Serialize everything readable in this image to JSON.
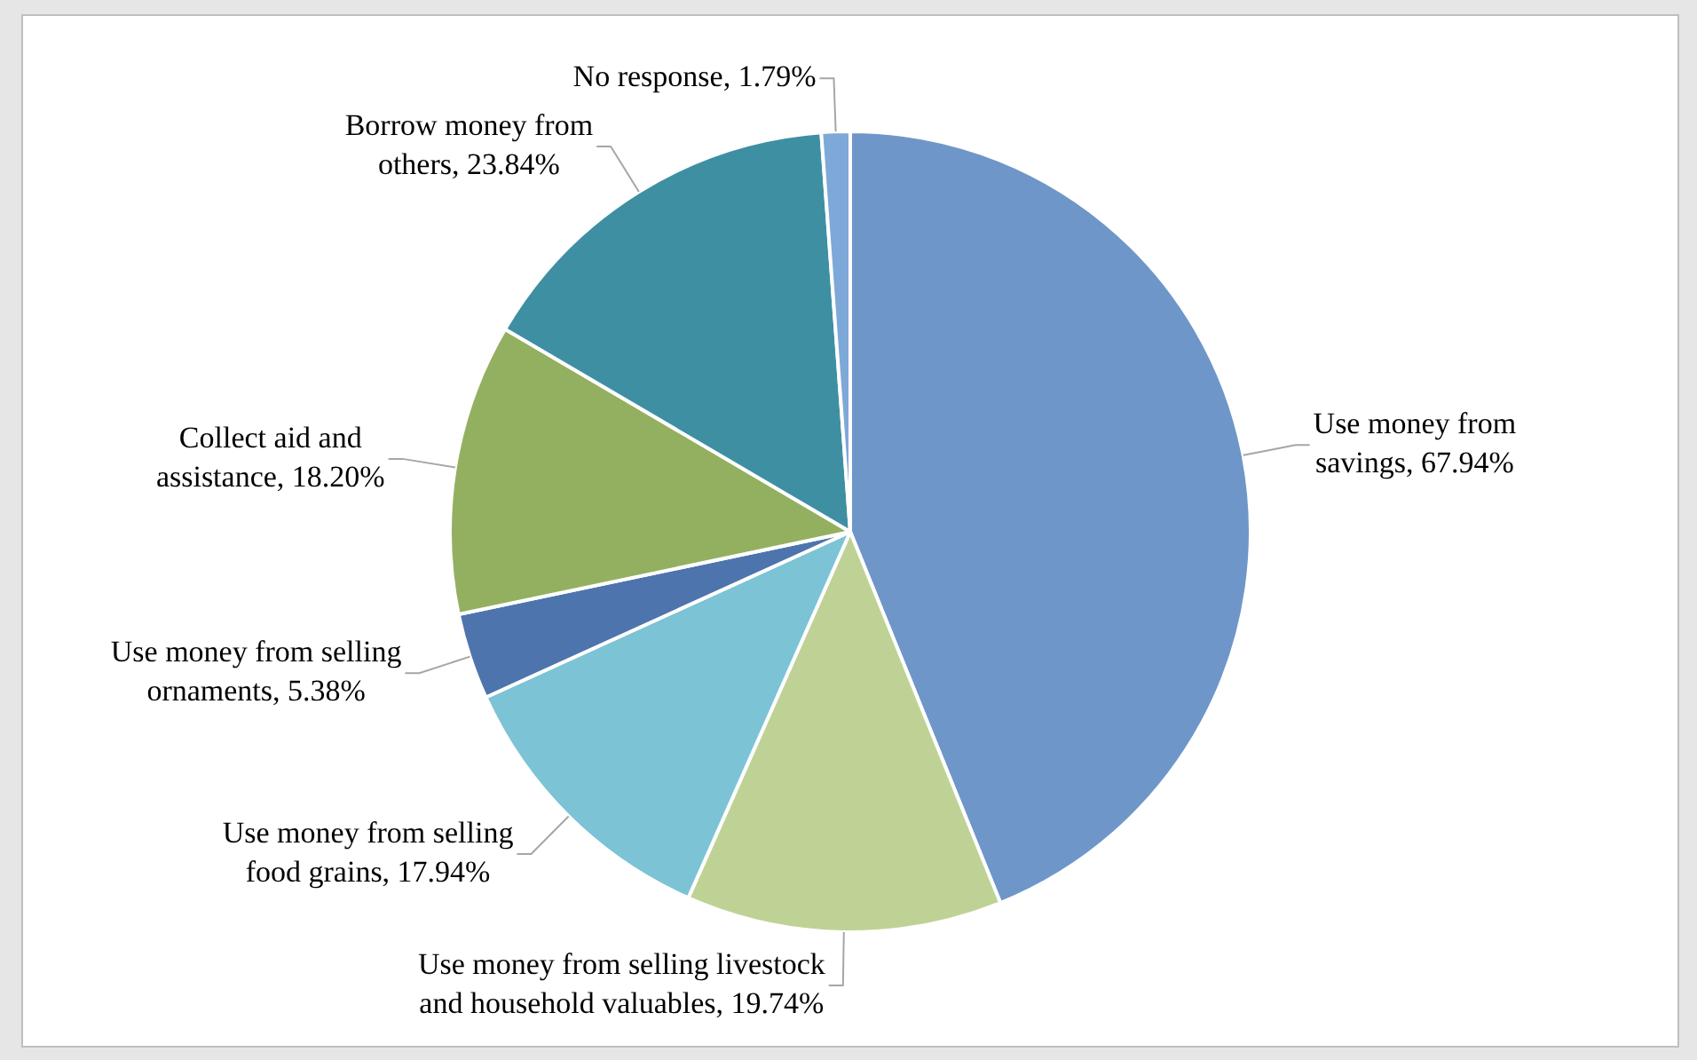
{
  "chart_data": {
    "type": "pie",
    "categories": [
      "Use money from savings",
      "Use money from selling livestock and household valuables",
      "Use money from selling food grains",
      "Use money from selling ornaments",
      "Collect aid and assistance",
      "Borrow money from others",
      "No response"
    ],
    "values": [
      67.94,
      19.74,
      17.94,
      5.38,
      18.2,
      23.84,
      1.79
    ],
    "value_labels": [
      "67.94%",
      "19.74%",
      "17.94%",
      "5.38%",
      "18.20%",
      "23.84%",
      "1.79%"
    ],
    "colors": [
      "#6f96c8",
      "#bfd295",
      "#7cc3d6",
      "#4e74ad",
      "#93b061",
      "#3f8fa3",
      "#7ea8d8"
    ],
    "legend": false
  }
}
